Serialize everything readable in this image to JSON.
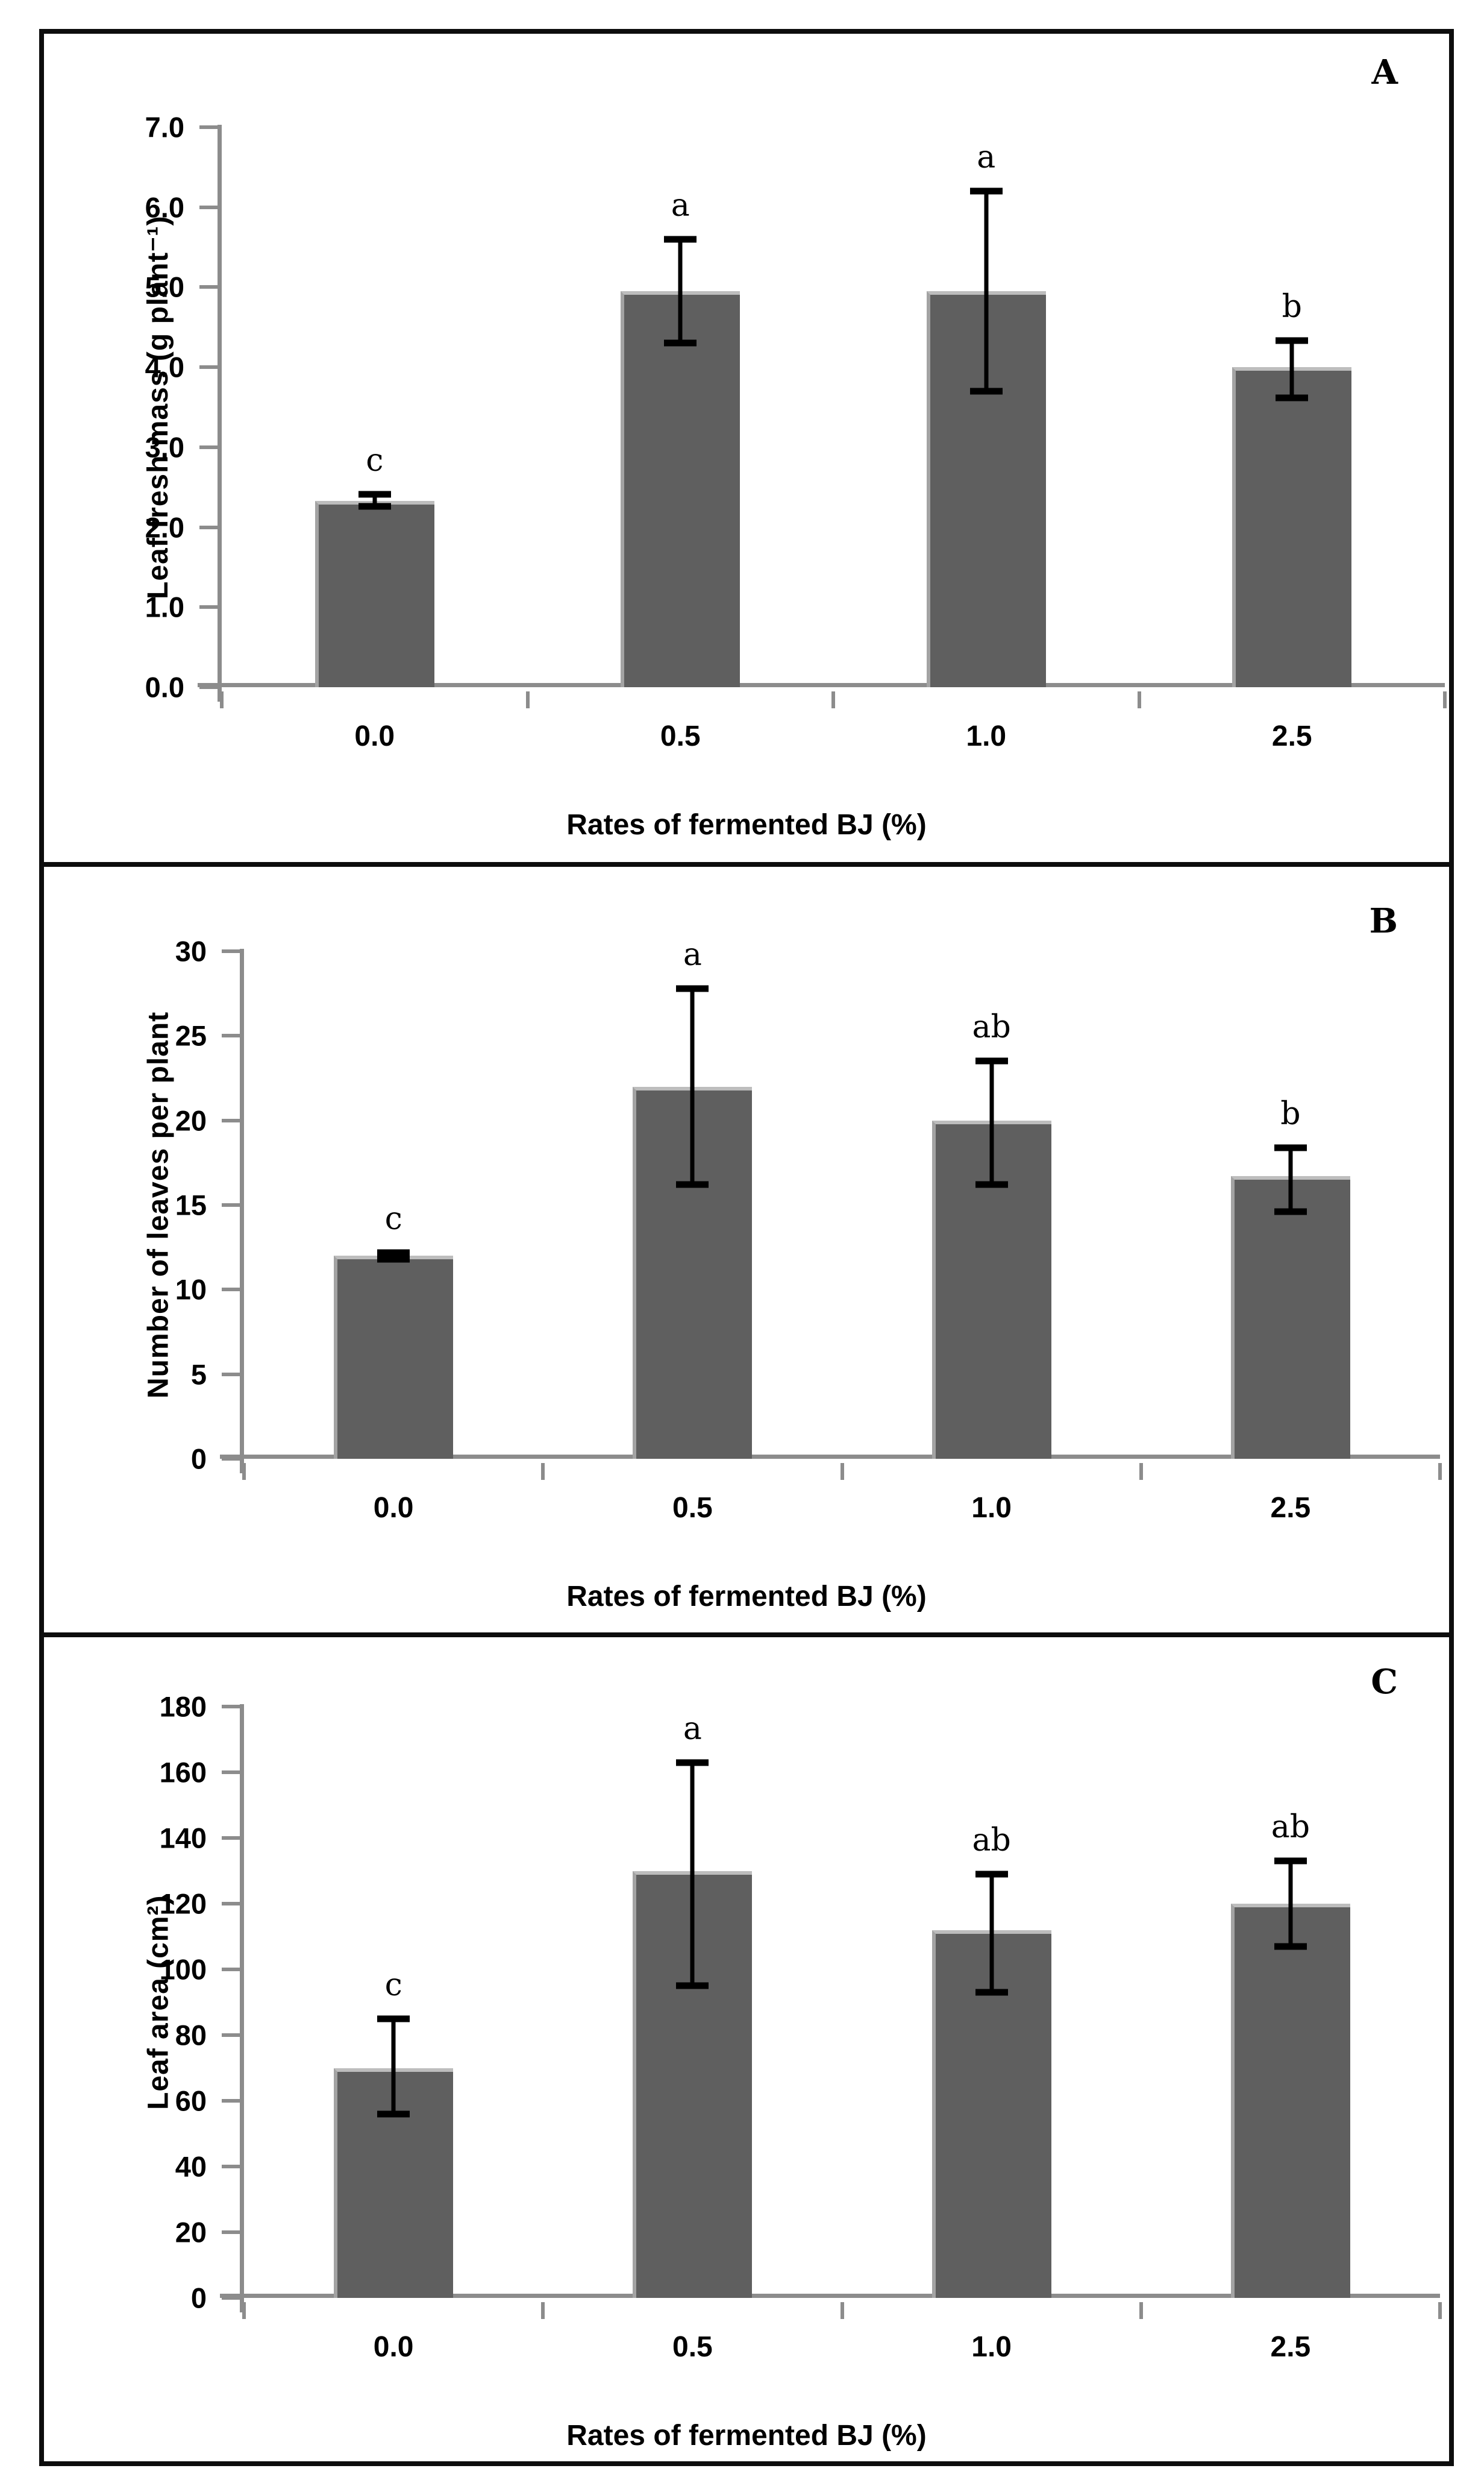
{
  "figure": {
    "background_color": "#ffffff",
    "border_color": "#0d0d0d",
    "bar_color": "#5f5f5f",
    "bar_edge_color": "#a3a3a3",
    "axis_color": "#8c8c8c",
    "error_bar_color": "#000000",
    "panel_letters": [
      "A",
      "B",
      "C"
    ]
  },
  "chart_data": [
    {
      "type": "bar",
      "panel_letter": "A",
      "ylabel": "Leaf fresh mass (g plant⁻¹)",
      "xlabel": "Rates of fermented BJ (%)",
      "categories": [
        "0.0",
        "0.5",
        "1.0",
        "2.5"
      ],
      "values": [
        2.33,
        4.95,
        4.95,
        4.0
      ],
      "error_low": [
        2.26,
        4.3,
        3.7,
        3.62
      ],
      "error_high": [
        2.41,
        5.6,
        6.2,
        4.33
      ],
      "sig_letters": [
        "c",
        "a",
        "a",
        "b"
      ],
      "ylim": [
        0,
        7
      ],
      "ytick_labels": [
        "0.0",
        "1.0",
        "2.0",
        "3.0",
        "4.0",
        "5.0",
        "6.0",
        "7.0"
      ],
      "grid": "off",
      "legend": "none"
    },
    {
      "type": "bar",
      "panel_letter": "B",
      "ylabel": "Number of leaves per plant",
      "xlabel": "Rates of fermented BJ (%)",
      "categories": [
        "0.0",
        "0.5",
        "1.0",
        "2.5"
      ],
      "values": [
        12.0,
        22.0,
        20.0,
        16.7
      ],
      "error_low": [
        11.8,
        16.2,
        16.2,
        14.6
      ],
      "error_high": [
        12.2,
        27.8,
        23.5,
        18.4
      ],
      "sig_letters": [
        "c",
        "a",
        "ab",
        "b"
      ],
      "ylim": [
        0,
        30
      ],
      "ytick_labels": [
        "0",
        "5",
        "10",
        "15",
        "20",
        "25",
        "30"
      ],
      "grid": "off",
      "legend": "none"
    },
    {
      "type": "bar",
      "panel_letter": "C",
      "ylabel": "Leaf area (cm²)",
      "xlabel": "Rates of fermented BJ (%)",
      "categories": [
        "0.0",
        "0.5",
        "1.0",
        "2.5"
      ],
      "values": [
        70,
        130,
        112,
        120
      ],
      "error_low": [
        56,
        95,
        93,
        107
      ],
      "error_high": [
        85,
        163,
        129,
        133
      ],
      "sig_letters": [
        "c",
        "a",
        "ab",
        "ab"
      ],
      "ylim": [
        0,
        180
      ],
      "ytick_labels": [
        "0",
        "20",
        "40",
        "60",
        "80",
        "100",
        "120",
        "140",
        "160",
        "180"
      ],
      "grid": "off",
      "legend": "none"
    }
  ]
}
